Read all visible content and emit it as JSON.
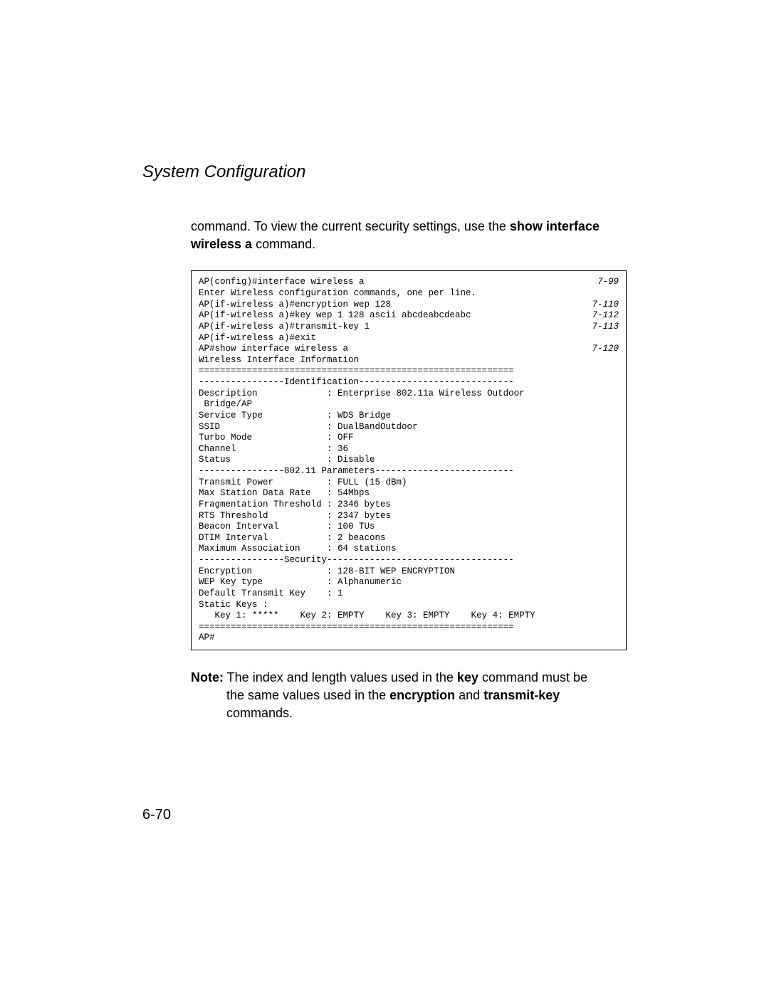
{
  "header": {
    "title": "System Configuration"
  },
  "intro": {
    "prefix": "command. To view the current security settings, use the ",
    "bold1": "show interface wireless a",
    "suffix": " command."
  },
  "code": {
    "lines": [
      {
        "text": "AP(config)#interface wireless a",
        "ref": "7-99"
      },
      {
        "text": "Enter Wireless configuration commands, one per line.",
        "ref": ""
      },
      {
        "text": "AP(if-wireless a)#encryption wep 128",
        "ref": "7-110"
      },
      {
        "text": "AP(if-wireless a)#key wep 1 128 ascii abcdeabcdeabc",
        "ref": "7-112"
      },
      {
        "text": "AP(if-wireless a)#transmit-key 1",
        "ref": "7-113"
      },
      {
        "text": "AP(if-wireless a)#exit",
        "ref": ""
      },
      {
        "text": "AP#show interface wireless a",
        "ref": "7-120"
      },
      {
        "text": "",
        "ref": ""
      },
      {
        "text": "Wireless Interface Information",
        "ref": ""
      },
      {
        "text": "===========================================================",
        "ref": ""
      },
      {
        "text": "----------------Identification-----------------------------",
        "ref": ""
      },
      {
        "text": "Description             : Enterprise 802.11a Wireless Outdoor",
        "ref": ""
      },
      {
        "text": " Bridge/AP",
        "ref": ""
      },
      {
        "text": "Service Type            : WDS Bridge",
        "ref": ""
      },
      {
        "text": "SSID                    : DualBandOutdoor",
        "ref": ""
      },
      {
        "text": "Turbo Mode              : OFF",
        "ref": ""
      },
      {
        "text": "Channel                 : 36",
        "ref": ""
      },
      {
        "text": "Status                  : Disable",
        "ref": ""
      },
      {
        "text": "----------------802.11 Parameters--------------------------",
        "ref": ""
      },
      {
        "text": "Transmit Power          : FULL (15 dBm)",
        "ref": ""
      },
      {
        "text": "Max Station Data Rate   : 54Mbps",
        "ref": ""
      },
      {
        "text": "Fragmentation Threshold : 2346 bytes",
        "ref": ""
      },
      {
        "text": "RTS Threshold           : 2347 bytes",
        "ref": ""
      },
      {
        "text": "Beacon Interval         : 100 TUs",
        "ref": ""
      },
      {
        "text": "DTIM Interval           : 2 beacons",
        "ref": ""
      },
      {
        "text": "Maximum Association     : 64 stations",
        "ref": ""
      },
      {
        "text": "----------------Security-----------------------------------",
        "ref": ""
      },
      {
        "text": "Encryption              : 128-BIT WEP ENCRYPTION",
        "ref": ""
      },
      {
        "text": "WEP Key type            : Alphanumeric",
        "ref": ""
      },
      {
        "text": "Default Transmit Key    : 1",
        "ref": ""
      },
      {
        "text": "Static Keys :",
        "ref": ""
      },
      {
        "text": "   Key 1: *****    Key 2: EMPTY    Key 3: EMPTY    Key 4: EMPTY",
        "ref": ""
      },
      {
        "text": "===========================================================",
        "ref": ""
      },
      {
        "text": "AP#",
        "ref": ""
      }
    ]
  },
  "note": {
    "label": "Note:",
    "t1": " The index and length values used in the ",
    "b1": "key",
    "t2": " command must be ",
    "t3": "the same values used in the ",
    "b2": "encryption",
    "t4": " and ",
    "b3": "transmit-key",
    "t5": " commands."
  },
  "footer": {
    "page": "6-70"
  }
}
